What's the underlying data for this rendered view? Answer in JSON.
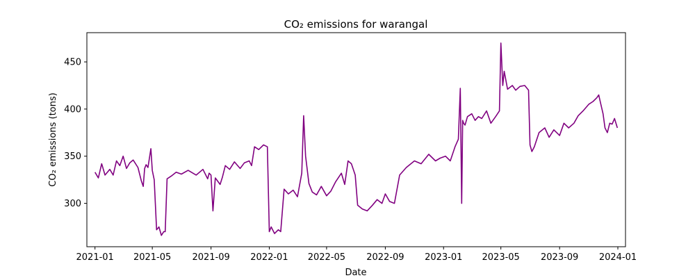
{
  "chart_data": {
    "type": "line",
    "title": "CO₂ emissions for warangal",
    "xlabel": "Date",
    "ylabel": "CO₂ emissions (tons)",
    "x_ticks": [
      "2021-01",
      "2021-05",
      "2021-09",
      "2022-01",
      "2022-05",
      "2022-09",
      "2023-01",
      "2023-05",
      "2023-09",
      "2024-01"
    ],
    "y_ticks": [
      300,
      350,
      400,
      450
    ],
    "xlim": [
      "2020-12-15",
      "2024-01-17"
    ],
    "ylim": [
      254,
      481
    ],
    "grid": false,
    "legend": "none",
    "series": [
      {
        "color": "#800080",
        "x": [
          "2021-01-01",
          "2021-01-08",
          "2021-01-15",
          "2021-01-22",
          "2021-02-01",
          "2021-02-08",
          "2021-02-15",
          "2021-02-22",
          "2021-03-01",
          "2021-03-08",
          "2021-03-15",
          "2021-03-22",
          "2021-04-01",
          "2021-04-08",
          "2021-04-12",
          "2021-04-15",
          "2021-04-18",
          "2021-04-22",
          "2021-04-28",
          "2021-05-01",
          "2021-05-05",
          "2021-05-10",
          "2021-05-15",
          "2021-05-20",
          "2021-05-25",
          "2021-05-28",
          "2021-06-01",
          "2021-06-10",
          "2021-06-20",
          "2021-07-01",
          "2021-07-15",
          "2021-08-01",
          "2021-08-15",
          "2021-08-25",
          "2021-08-28",
          "2021-09-01",
          "2021-09-05",
          "2021-09-10",
          "2021-09-20",
          "2021-09-25",
          "2021-10-01",
          "2021-10-10",
          "2021-10-20",
          "2021-11-01",
          "2021-11-10",
          "2021-11-20",
          "2021-11-25",
          "2021-12-01",
          "2021-12-10",
          "2021-12-20",
          "2021-12-28",
          "2022-01-01",
          "2022-01-05",
          "2022-01-12",
          "2022-01-20",
          "2022-01-25",
          "2022-02-01",
          "2022-02-10",
          "2022-02-20",
          "2022-03-01",
          "2022-03-10",
          "2022-03-14",
          "2022-03-18",
          "2022-03-25",
          "2022-04-01",
          "2022-04-10",
          "2022-04-20",
          "2022-05-01",
          "2022-05-10",
          "2022-05-20",
          "2022-06-01",
          "2022-06-08",
          "2022-06-15",
          "2022-06-22",
          "2022-06-30",
          "2022-07-05",
          "2022-07-15",
          "2022-07-25",
          "2022-08-05",
          "2022-08-15",
          "2022-08-25",
          "2022-09-01",
          "2022-09-10",
          "2022-09-20",
          "2022-10-01",
          "2022-10-15",
          "2022-11-01",
          "2022-11-15",
          "2022-12-01",
          "2022-12-15",
          "2022-12-25",
          "2023-01-05",
          "2023-01-15",
          "2023-01-25",
          "2023-02-01",
          "2023-02-05",
          "2023-02-08",
          "2023-02-10",
          "2023-02-12",
          "2023-02-15",
          "2023-02-20",
          "2023-03-01",
          "2023-03-08",
          "2023-03-15",
          "2023-03-22",
          "2023-04-01",
          "2023-04-10",
          "2023-04-20",
          "2023-04-28",
          "2023-05-01",
          "2023-05-05",
          "2023-05-08",
          "2023-05-15",
          "2023-05-25",
          "2023-06-01",
          "2023-06-10",
          "2023-06-20",
          "2023-06-28",
          "2023-07-01",
          "2023-07-05",
          "2023-07-10",
          "2023-07-20",
          "2023-08-01",
          "2023-08-10",
          "2023-08-20",
          "2023-09-01",
          "2023-09-10",
          "2023-09-20",
          "2023-10-01",
          "2023-10-10",
          "2023-10-20",
          "2023-11-01",
          "2023-11-10",
          "2023-11-18",
          "2023-11-22",
          "2023-11-25",
          "2023-12-01",
          "2023-12-05",
          "2023-12-10",
          "2023-12-15",
          "2023-12-20",
          "2023-12-25",
          "2023-12-31"
        ],
        "values": [
          333,
          327,
          342,
          330,
          336,
          330,
          345,
          340,
          350,
          337,
          343,
          346,
          338,
          324,
          318,
          337,
          341,
          338,
          358,
          335,
          325,
          272,
          275,
          266,
          270,
          270,
          326,
          329,
          333,
          331,
          335,
          330,
          336,
          326,
          332,
          330,
          292,
          327,
          320,
          328,
          340,
          336,
          344,
          337,
          343,
          345,
          340,
          360,
          357,
          362,
          360,
          270,
          275,
          268,
          272,
          270,
          315,
          310,
          314,
          307,
          332,
          393,
          350,
          321,
          312,
          309,
          318,
          308,
          313,
          323,
          332,
          320,
          345,
          342,
          330,
          298,
          294,
          292,
          298,
          304,
          300,
          310,
          302,
          300,
          330,
          338,
          345,
          342,
          352,
          345,
          348,
          350,
          345,
          360,
          368,
          422,
          300,
          388,
          385,
          383,
          392,
          395,
          388,
          392,
          390,
          398,
          385,
          392,
          398,
          470,
          425,
          440,
          421,
          425,
          420,
          424,
          425,
          420,
          362,
          355,
          360,
          375,
          380,
          370,
          378,
          372,
          385,
          380,
          385,
          393,
          398,
          405,
          408,
          412,
          415,
          408,
          395,
          380,
          375,
          385,
          384,
          390,
          380
        ]
      }
    ]
  }
}
